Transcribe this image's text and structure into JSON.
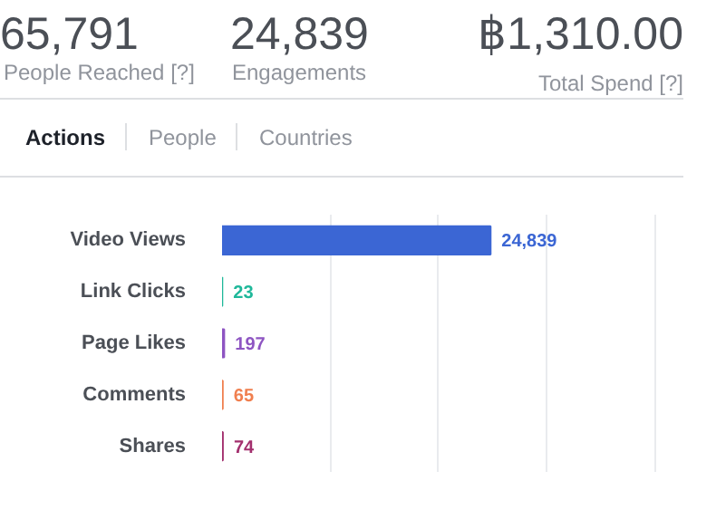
{
  "chart_data": {
    "type": "bar",
    "orientation": "horizontal",
    "categories": [
      "Video Views",
      "Link Clicks",
      "Page Likes",
      "Comments",
      "Shares"
    ],
    "values": [
      24839,
      23,
      197,
      65,
      74
    ],
    "colors": [
      "#3b66d4",
      "#1fb89a",
      "#8e55c2",
      "#f07f4f",
      "#a3306e"
    ],
    "value_labels": [
      "24,839",
      "23",
      "197",
      "65",
      "74"
    ],
    "xlim": [
      0,
      40000
    ],
    "xticks": [
      {
        "value": 10000,
        "label": null
      },
      {
        "value": 20000,
        "label": null
      },
      {
        "value": 30000,
        "label": null
      },
      {
        "value": 40000,
        "label": null
      }
    ],
    "grid": "x",
    "tick_labels": "y",
    "annotations": [
      "65,791",
      "People Reached [?]",
      "24,839",
      "Engagements",
      "฿1,310.00",
      "Total Spend [?]",
      "Actions",
      "People",
      "Countries"
    ]
  }
}
